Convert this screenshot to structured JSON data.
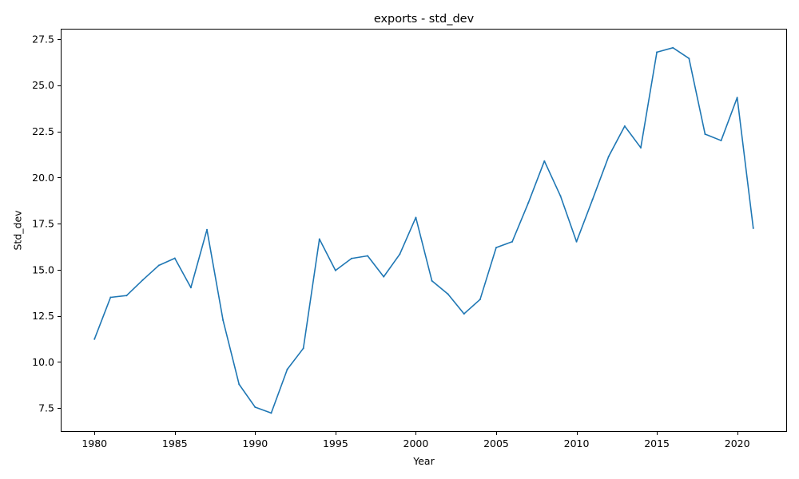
{
  "chart_data": {
    "type": "line",
    "title": "exports - std_dev",
    "xlabel": "Year",
    "ylabel": "Std_dev",
    "xlim": [
      1977.9,
      2023.1
    ],
    "ylim": [
      6.21,
      28.06
    ],
    "x_ticks": [
      1980,
      1985,
      1990,
      1995,
      2000,
      2005,
      2010,
      2015,
      2020
    ],
    "x_tick_labels": [
      "1980",
      "1985",
      "1990",
      "1995",
      "2000",
      "2005",
      "2010",
      "2015",
      "2020"
    ],
    "y_ticks": [
      7.5,
      10.0,
      12.5,
      15.0,
      17.5,
      20.0,
      22.5,
      25.0,
      27.5
    ],
    "y_tick_labels": [
      "7.5",
      "10.0",
      "12.5",
      "15.0",
      "17.5",
      "20.0",
      "22.5",
      "25.0",
      "27.5"
    ],
    "grid": false,
    "series": [
      {
        "color": "#1f77b4",
        "x": [
          1980,
          1981,
          1982,
          1983,
          1984,
          1985,
          1986,
          1987,
          1988,
          1989,
          1990,
          1991,
          1992,
          1993,
          1994,
          1995,
          1996,
          1997,
          1998,
          1999,
          2000,
          2001,
          2002,
          2003,
          2004,
          2005,
          2006,
          2007,
          2008,
          2009,
          2010,
          2011,
          2012,
          2013,
          2014,
          2015,
          2016,
          2017,
          2018,
          2019,
          2020,
          2021
        ],
        "y": [
          11.24,
          13.5,
          13.6,
          14.44,
          15.23,
          15.62,
          14.03,
          17.17,
          12.27,
          8.79,
          7.55,
          7.23,
          9.6,
          10.74,
          16.66,
          14.96,
          15.61,
          15.75,
          14.62,
          15.84,
          17.83,
          14.4,
          13.68,
          12.61,
          13.39,
          16.2,
          16.52,
          18.62,
          20.89,
          19.0,
          16.52,
          18.81,
          21.14,
          22.78,
          21.61,
          26.79,
          27.03,
          26.45,
          22.35,
          22.0,
          24.33,
          17.25
        ]
      }
    ]
  }
}
